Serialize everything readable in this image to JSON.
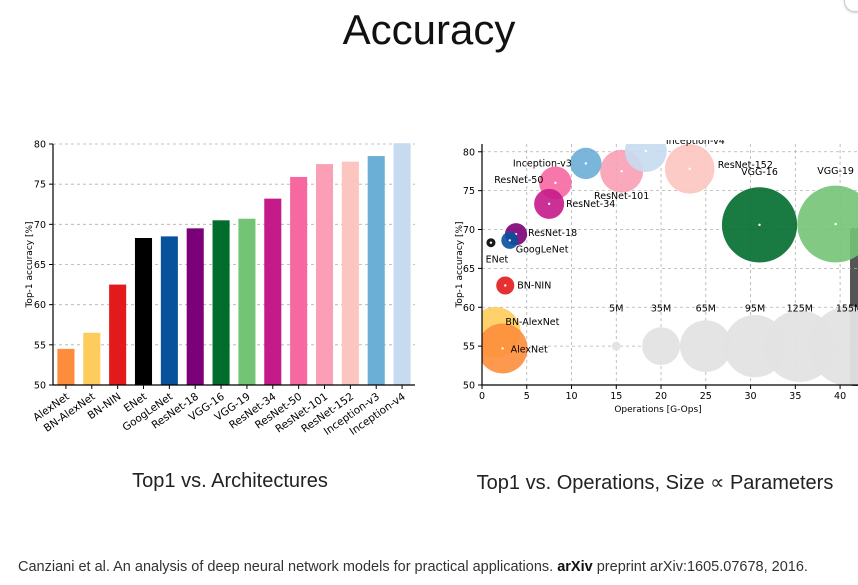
{
  "slide": {
    "title": "Accuracy",
    "caption_left": "Top1 vs. Architectures",
    "caption_right": "Top1 vs. Operations, Size ∝ Parameters",
    "citation_prefix": "Canziani et al. An analysis of deep neural network models for practical applications.",
    "citation_bold": "arXiv",
    "citation_suffix": "preprint arXiv:1605.07678, 2016."
  },
  "chart_data": [
    {
      "type": "bar",
      "title": "",
      "xlabel": "",
      "ylabel": "Top-1 accuracy [%]",
      "ylim": [
        50,
        80
      ],
      "yticks": [
        50,
        55,
        60,
        65,
        70,
        75,
        80
      ],
      "grid": "horizontal dashed",
      "categories": [
        "AlexNet",
        "BN-AlexNet",
        "BN-NIN",
        "ENet",
        "GoogLeNet",
        "ResNet-18",
        "VGG-16",
        "VGG-19",
        "ResNet-34",
        "ResNet-50",
        "ResNet-101",
        "ResNet-152",
        "Inception-v3",
        "Inception-v4"
      ],
      "values": [
        54.5,
        56.5,
        62.5,
        68.3,
        68.5,
        69.5,
        70.5,
        70.7,
        73.2,
        75.9,
        77.5,
        77.8,
        78.5,
        80.1
      ],
      "colors": [
        "#fd8d3c",
        "#fecc5c",
        "#e31a1c",
        "#000000",
        "#08519c",
        "#7a0177",
        "#006d2c",
        "#74c476",
        "#c51b8a",
        "#f768a1",
        "#fa9fb5",
        "#fcc5c0",
        "#6baed6",
        "#c6dbef"
      ]
    },
    {
      "type": "scatter",
      "title": "",
      "xlabel": "Operations [G-Ops]",
      "ylabel": "Top-1 accuracy [%]",
      "xlim": [
        0,
        42
      ],
      "ylim": [
        50,
        81
      ],
      "xticks": [
        0,
        5,
        10,
        15,
        20,
        25,
        30,
        35,
        40
      ],
      "yticks": [
        50,
        55,
        60,
        65,
        70,
        75,
        80
      ],
      "grid": "dashed",
      "points": [
        {
          "name": "AlexNet",
          "x": 2.3,
          "y": 54.7,
          "params": 61,
          "color": "#fd8d3c"
        },
        {
          "name": "BN-AlexNet",
          "x": 1.5,
          "y": 56.8,
          "params": 62,
          "color": "#fecc5c"
        },
        {
          "name": "BN-NIN",
          "x": 2.6,
          "y": 62.8,
          "params": 8,
          "color": "#e31a1c"
        },
        {
          "name": "ENet",
          "x": 1.0,
          "y": 68.3,
          "params": 1,
          "color": "#000000"
        },
        {
          "name": "GoogLeNet",
          "x": 3.1,
          "y": 68.6,
          "params": 7,
          "color": "#08519c"
        },
        {
          "name": "ResNet-18",
          "x": 3.8,
          "y": 69.4,
          "params": 12,
          "color": "#7a0177"
        },
        {
          "name": "ResNet-34",
          "x": 7.5,
          "y": 73.3,
          "params": 22,
          "color": "#c51b8a"
        },
        {
          "name": "ResNet-50",
          "x": 8.2,
          "y": 76.0,
          "params": 26,
          "color": "#f768a1"
        },
        {
          "name": "Inception-v3",
          "x": 11.6,
          "y": 78.5,
          "params": 24,
          "color": "#6baed6"
        },
        {
          "name": "ResNet-101",
          "x": 15.6,
          "y": 77.5,
          "params": 45,
          "color": "#fa9fb5"
        },
        {
          "name": "Inception-v4",
          "x": 18.3,
          "y": 80.1,
          "params": 43,
          "color": "#c6dbef"
        },
        {
          "name": "ResNet-152",
          "x": 23.2,
          "y": 77.8,
          "params": 60,
          "color": "#fcc5c0"
        },
        {
          "name": "VGG-16",
          "x": 31.0,
          "y": 70.6,
          "params": 138,
          "color": "#006d2c"
        },
        {
          "name": "VGG-19",
          "x": 39.5,
          "y": 70.7,
          "params": 144,
          "color": "#74c476"
        }
      ],
      "size_legend": [
        {
          "label": "5M",
          "x": 15,
          "params": 5
        },
        {
          "label": "35M",
          "x": 20,
          "params": 35
        },
        {
          "label": "65M",
          "x": 25,
          "params": 65
        },
        {
          "label": "95M",
          "x": 30.5,
          "params": 95
        },
        {
          "label": "125M",
          "x": 35.5,
          "params": 125
        },
        {
          "label": "155M",
          "x": 41,
          "params": 155
        }
      ],
      "size_legend_y": 55,
      "size_legend_color": "#e3e3e3"
    }
  ]
}
